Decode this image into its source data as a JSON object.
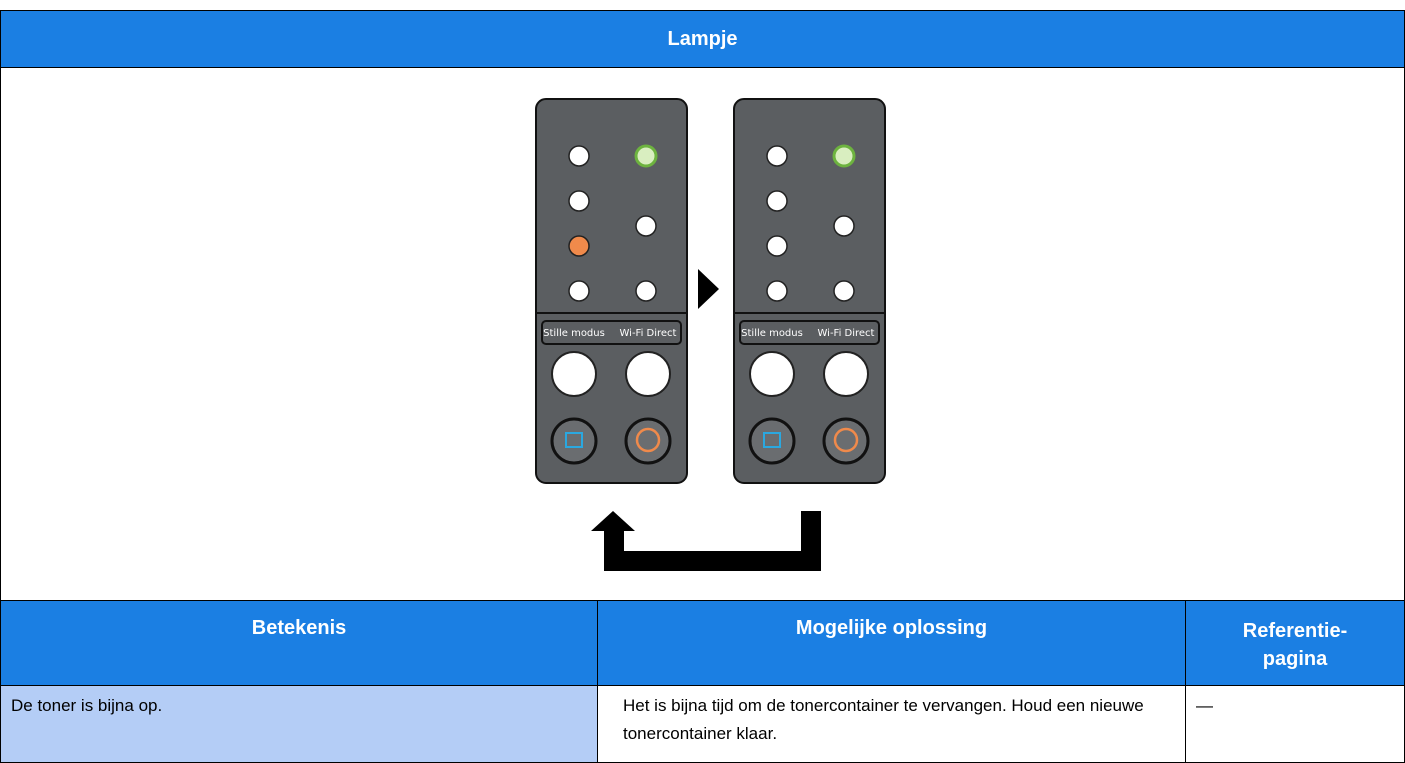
{
  "header": {
    "title": "Lampje"
  },
  "panels": [
    {
      "labels": [
        "Stille modus",
        "Wi-Fi Direct"
      ]
    },
    {
      "labels": [
        "Stille modus",
        "Wi-Fi Direct"
      ]
    }
  ],
  "table": {
    "columns": [
      "Betekenis",
      "Mogelijke oplossing",
      "Referentie-pagina"
    ],
    "rows": [
      [
        "De toner is bijna op.",
        "Het is bijna tijd om de tonercontainer te vervangen. Houd een nieuwe tonercontainer klaar.",
        "—"
      ]
    ]
  }
}
